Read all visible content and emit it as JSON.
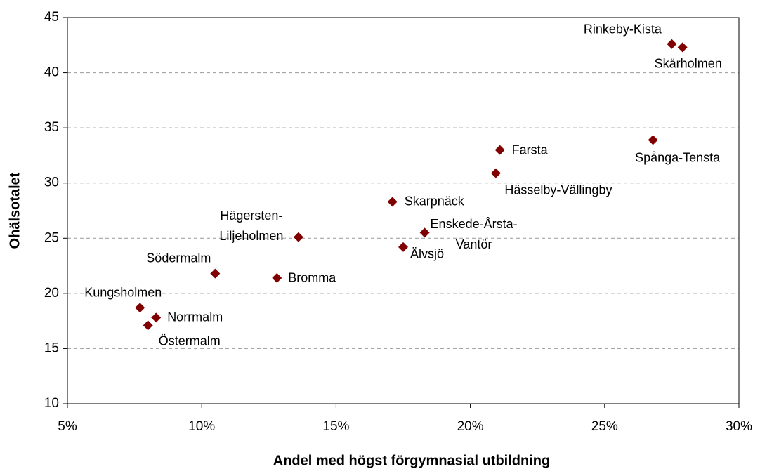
{
  "chart_data": {
    "type": "scatter",
    "x_label": "Andel med högst förgymnasial utbildning",
    "y_label": "Ohälsotalet",
    "labels": [
      "Rinkeby-Kista",
      "Skärholmen",
      "Spånga-Tensta",
      "Farsta",
      "Hässelby-Vällingby",
      "Skarpnäck",
      "Enskede-Årsta-\nVantör",
      "Älvsjö",
      "Hägersten-\nLiljeholmen",
      "Bromma",
      "Södermalm",
      "Kungsholmen",
      "Norrmalm",
      "Östermalm"
    ],
    "x": [
      27.5,
      27.9,
      26.8,
      21.1,
      20.95,
      17.1,
      18.3,
      17.5,
      13.6,
      12.8,
      10.5,
      7.7,
      8.3,
      8.0
    ],
    "y": [
      42.6,
      42.3,
      33.9,
      33.0,
      30.9,
      28.3,
      25.5,
      24.2,
      25.1,
      21.4,
      21.8,
      18.7,
      17.8,
      17.1
    ],
    "color": "#800000",
    "xlim": [
      5,
      30
    ],
    "xticks": [
      {
        "value": 5,
        "label": "5%"
      },
      {
        "value": 10,
        "label": "10%"
      },
      {
        "value": 15,
        "label": "15%"
      },
      {
        "value": 20,
        "label": "20%"
      },
      {
        "value": 25,
        "label": "25%"
      },
      {
        "value": 30,
        "label": "30%"
      }
    ],
    "ylim": [
      10,
      45
    ],
    "yticks": [
      10,
      15,
      20,
      25,
      30,
      35,
      40,
      45
    ],
    "grid": true
  }
}
